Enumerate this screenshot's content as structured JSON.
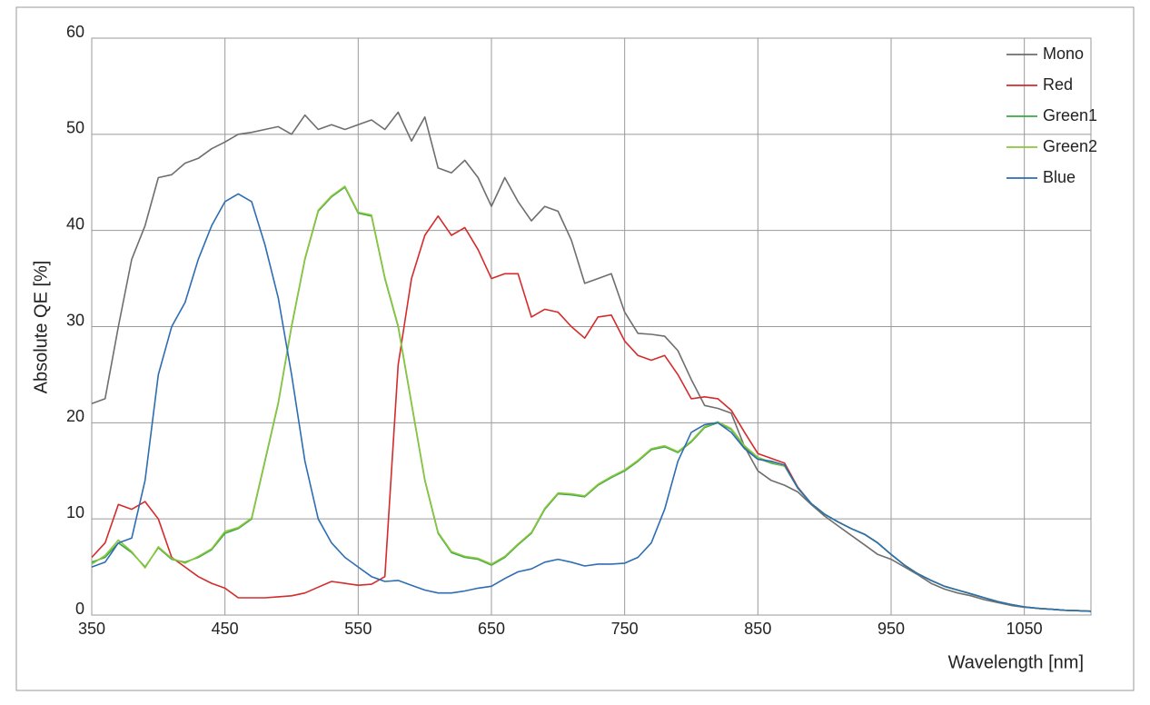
{
  "chart_data": {
    "type": "line",
    "xlabel": "Wavelength [nm]",
    "ylabel": "Absolute QE [%]",
    "x": [
      350,
      360,
      370,
      380,
      390,
      400,
      410,
      420,
      430,
      440,
      450,
      460,
      470,
      480,
      490,
      500,
      510,
      520,
      530,
      540,
      550,
      560,
      570,
      580,
      590,
      600,
      610,
      620,
      630,
      640,
      650,
      660,
      670,
      680,
      690,
      700,
      710,
      720,
      730,
      740,
      750,
      760,
      770,
      780,
      790,
      800,
      810,
      820,
      830,
      840,
      850,
      860,
      870,
      880,
      890,
      900,
      910,
      920,
      930,
      940,
      950,
      960,
      970,
      980,
      990,
      1000,
      1010,
      1020,
      1030,
      1040,
      1050,
      1060,
      1070,
      1080,
      1090,
      1100
    ],
    "series": [
      {
        "name": "Mono",
        "color": "#6e6e6e",
        "values": [
          22,
          22.5,
          30,
          37,
          40.5,
          45.5,
          45.8,
          47,
          47.5,
          48.5,
          49.2,
          50,
          50.2,
          50.5,
          50.8,
          50,
          52,
          50.5,
          51,
          50.5,
          51,
          51.5,
          50.5,
          52.3,
          49.3,
          51.8,
          46.5,
          46,
          47.3,
          45.5,
          42.5,
          45.5,
          43,
          41,
          42.5,
          42,
          39,
          34.5,
          35,
          35.5,
          31.5,
          29.3,
          29.2,
          29,
          27.5,
          24.5,
          21.8,
          21.5,
          21,
          17.5,
          15,
          14,
          13.5,
          12.8,
          11.5,
          10.3,
          9.3,
          8.3,
          7.3,
          6.3,
          5.8,
          5,
          4.2,
          3.3,
          2.7,
          2.3,
          2,
          1.6,
          1.3,
          1,
          0.8,
          0.7,
          0.6,
          0.5,
          0.45,
          0.4
        ]
      },
      {
        "name": "Red",
        "color": "#d42b2b",
        "values": [
          6,
          7.5,
          11.5,
          11,
          11.8,
          10,
          6,
          5,
          4,
          3.3,
          2.8,
          1.8,
          1.8,
          1.8,
          1.9,
          2,
          2.3,
          2.9,
          3.5,
          3.3,
          3.1,
          3.2,
          4,
          26,
          35,
          39.5,
          41.5,
          39.5,
          40.3,
          38,
          35,
          35.5,
          35.5,
          31,
          31.8,
          31.5,
          30,
          28.8,
          31,
          31.2,
          28.5,
          27,
          26.5,
          27,
          25,
          22.5,
          22.7,
          22.5,
          21.3,
          19,
          16.8,
          16.3,
          15.8,
          13.3,
          11.6,
          10.5,
          9.7,
          9,
          8.4,
          7.5,
          6.3,
          5.2,
          4.3,
          3.6,
          3,
          2.6,
          2.2,
          1.8,
          1.4,
          1.1,
          0.85,
          0.7,
          0.6,
          0.5,
          0.45,
          0.4
        ]
      },
      {
        "name": "Green1",
        "color": "#3aa845",
        "values": [
          5.5,
          6,
          7.5,
          6.5,
          5,
          7,
          5.8,
          5.5,
          6,
          6.8,
          8.5,
          9,
          10,
          16,
          22,
          30,
          37,
          42,
          43.5,
          44.5,
          41.8,
          41.5,
          35,
          30,
          22,
          14,
          8.5,
          6.5,
          6,
          5.8,
          5.2,
          6,
          7.3,
          8.5,
          11,
          12.6,
          12.5,
          12.3,
          13.5,
          14.3,
          15,
          16,
          17.2,
          17.5,
          16.9,
          18,
          19.5,
          20,
          19.3,
          17.5,
          16.3,
          15.8,
          15.5,
          13.2,
          11.6,
          10.5,
          9.7,
          9,
          8.4,
          7.5,
          6.3,
          5.2,
          4.3,
          3.6,
          3,
          2.6,
          2.2,
          1.8,
          1.4,
          1.1,
          0.85,
          0.7,
          0.6,
          0.5,
          0.45,
          0.4
        ]
      },
      {
        "name": "Green2",
        "color": "#8cc63e",
        "values": [
          5.3,
          6.2,
          7.8,
          6.6,
          4.9,
          7.1,
          5.9,
          5.4,
          6.1,
          6.9,
          8.7,
          9.1,
          10.1,
          16.1,
          22.1,
          30.1,
          37.1,
          42.1,
          43.6,
          44.6,
          41.9,
          41.6,
          35.1,
          30.1,
          22.1,
          14.1,
          8.6,
          6.6,
          6.1,
          5.9,
          5.3,
          6.1,
          7.4,
          8.6,
          11.1,
          12.7,
          12.6,
          12.4,
          13.6,
          14.4,
          15.1,
          16.1,
          17.3,
          17.6,
          17,
          18.1,
          19.6,
          20.1,
          19.4,
          17.6,
          16.4,
          15.9,
          15.5,
          13.2,
          11.6,
          10.5,
          9.7,
          9,
          8.4,
          7.5,
          6.3,
          5.2,
          4.3,
          3.6,
          3,
          2.6,
          2.2,
          1.8,
          1.4,
          1.1,
          0.85,
          0.7,
          0.6,
          0.5,
          0.45,
          0.4
        ]
      },
      {
        "name": "Blue",
        "color": "#2d6db3",
        "values": [
          5,
          5.5,
          7.5,
          8,
          14,
          25,
          30,
          32.5,
          37,
          40.5,
          43,
          43.8,
          43,
          38.5,
          33,
          25,
          16,
          10,
          7.5,
          6,
          5,
          4,
          3.5,
          3.6,
          3.1,
          2.6,
          2.3,
          2.3,
          2.5,
          2.8,
          3,
          3.8,
          4.5,
          4.8,
          5.5,
          5.8,
          5.5,
          5.1,
          5.3,
          5.3,
          5.4,
          6,
          7.5,
          11,
          16,
          19,
          19.8,
          20,
          19,
          17.3,
          16.2,
          16,
          15.6,
          13.2,
          11.6,
          10.5,
          9.7,
          9,
          8.4,
          7.5,
          6.3,
          5.2,
          4.3,
          3.6,
          3,
          2.6,
          2.2,
          1.8,
          1.4,
          1.1,
          0.85,
          0.7,
          0.6,
          0.5,
          0.45,
          0.4
        ]
      }
    ],
    "xlim": [
      350,
      1100
    ],
    "xticks": [
      350,
      450,
      550,
      650,
      750,
      850,
      950,
      1050
    ],
    "ylim": [
      0,
      60
    ],
    "yticks": [
      0,
      10,
      20,
      30,
      40,
      50,
      60
    ],
    "grid": true,
    "legend": "upper right"
  }
}
